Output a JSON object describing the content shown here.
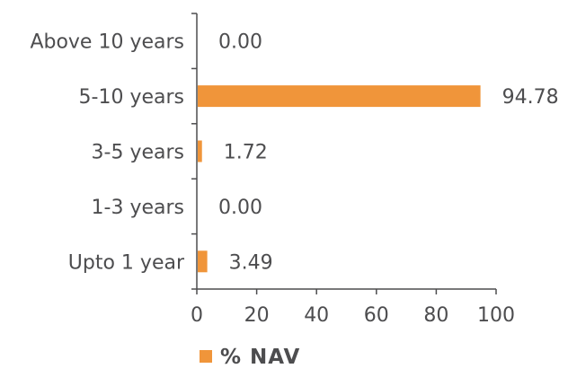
{
  "chart_data": {
    "type": "bar",
    "orientation": "horizontal",
    "title": "",
    "xlabel": "",
    "ylabel": "",
    "categories": [
      "Above 10 years",
      "5-10 years",
      "3-5 years",
      "1-3 years",
      "Upto 1 year"
    ],
    "series": [
      {
        "name": "% NAV",
        "values": [
          0.0,
          94.78,
          1.72,
          0.0,
          3.49
        ],
        "labels": [
          "0.00",
          "94.78",
          "1.72",
          "0.00",
          "3.49"
        ],
        "color": "#f0953a"
      }
    ],
    "xlim": [
      0,
      100
    ],
    "xticks": [
      0,
      20,
      40,
      60,
      80,
      100
    ],
    "grid": false,
    "legend": {
      "position": "bottom",
      "label": "% NAV"
    },
    "colors": {
      "bar": "#f0953a",
      "axis": "#4d4d4f",
      "text": "#4d4d4f"
    }
  }
}
